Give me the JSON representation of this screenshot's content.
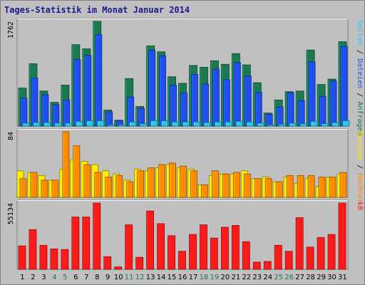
{
  "chart_data": {
    "type": "bar",
    "title": "Tages-Statistik im Monat Januar 2014",
    "categories": [
      "1",
      "2",
      "3",
      "4",
      "5",
      "6",
      "7",
      "8",
      "9",
      "10",
      "11",
      "12",
      "13",
      "14",
      "15",
      "16",
      "17",
      "18",
      "19",
      "20",
      "21",
      "22",
      "23",
      "24",
      "25",
      "26",
      "27",
      "28",
      "29",
      "30",
      "31"
    ],
    "weekend_days": [
      4,
      5,
      11,
      12,
      18,
      19,
      25,
      26
    ],
    "panels": [
      {
        "name": "top",
        "ymax_label": "1762",
        "ymax": 1762,
        "series": [
          {
            "name": "Anfragen",
            "color": "#1a7a50",
            "values": [
              640,
              1050,
              590,
              400,
              690,
              1370,
              1300,
              1762,
              270,
              100,
              800,
              330,
              1350,
              1250,
              830,
              720,
              1020,
              990,
              1100,
              1040,
              1220,
              1030,
              730,
              220,
              440,
              580,
              590,
              1280,
              700,
              790,
              1420
            ]
          },
          {
            "name": "Dateien",
            "color": "#1f4ff0",
            "values": [
              470,
              810,
              530,
              360,
              440,
              1120,
              1190,
              1540,
              240,
              90,
              490,
              300,
              1280,
              1180,
              690,
              560,
              870,
              710,
              960,
              780,
              1070,
              840,
              570,
              200,
              320,
              560,
              430,
              1080,
              500,
              760,
              1340
            ]
          },
          {
            "name": "Seiten",
            "color": "#2bc8e8",
            "values": [
              50,
              60,
              60,
              50,
              50,
              80,
              90,
              90,
              20,
              20,
              70,
              40,
              90,
              90,
              70,
              70,
              70,
              60,
              70,
              70,
              80,
              70,
              50,
              20,
              30,
              50,
              40,
              80,
              40,
              60,
              90
            ]
          }
        ],
        "side_labels": [
          {
            "text": "Anfragen",
            "color": "#1a7a50"
          },
          {
            "text": "Dateien",
            "color": "#1f4ff0"
          },
          {
            "text": "Seiten",
            "color": "#2bc8e8"
          }
        ]
      },
      {
        "name": "middle",
        "ymax_label": "84",
        "ymax": 84,
        "series": [
          {
            "name": "Besuche",
            "color": "#ffea00",
            "values": [
              34,
              32,
              28,
              22,
              36,
              48,
              46,
              42,
              34,
              30,
              22,
              36,
              34,
              38,
              42,
              38,
              36,
              16,
              28,
              30,
              30,
              34,
              24,
              26,
              20,
              26,
              18,
              24,
              14,
              26,
              30
            ]
          },
          {
            "name": "Rechner",
            "color": "#ff8c00",
            "values": [
              24,
              32,
              22,
              22,
              84,
              66,
              42,
              32,
              26,
              28,
              20,
              34,
              38,
              42,
              44,
              40,
              34,
              16,
              34,
              30,
              32,
              30,
              24,
              24,
              20,
              28,
              28,
              28,
              26,
              26,
              32
            ]
          }
        ],
        "side_labels": [
          {
            "text": "Rechner",
            "color": "#ff8c00"
          },
          {
            "text": "Besuche",
            "color": "#ffea00"
          }
        ]
      },
      {
        "name": "bottom",
        "ymax_label": "55134",
        "ymax": 55134,
        "series": [
          {
            "name": "kB",
            "color": "#ff1a1a",
            "values": [
              19500,
              33000,
              20000,
              17000,
              16500,
              43500,
              43500,
              55134,
              10500,
              2000,
              37000,
              10000,
              48500,
              38000,
              28000,
              15000,
              29000,
              37000,
              26000,
              35000,
              36500,
              23000,
              6000,
              6500,
              20000,
              15000,
              43000,
              18500,
              26500,
              29000,
              55134
            ]
          }
        ],
        "side_labels": [
          {
            "text": "kB",
            "color": "#ff1a1a"
          }
        ]
      }
    ]
  }
}
